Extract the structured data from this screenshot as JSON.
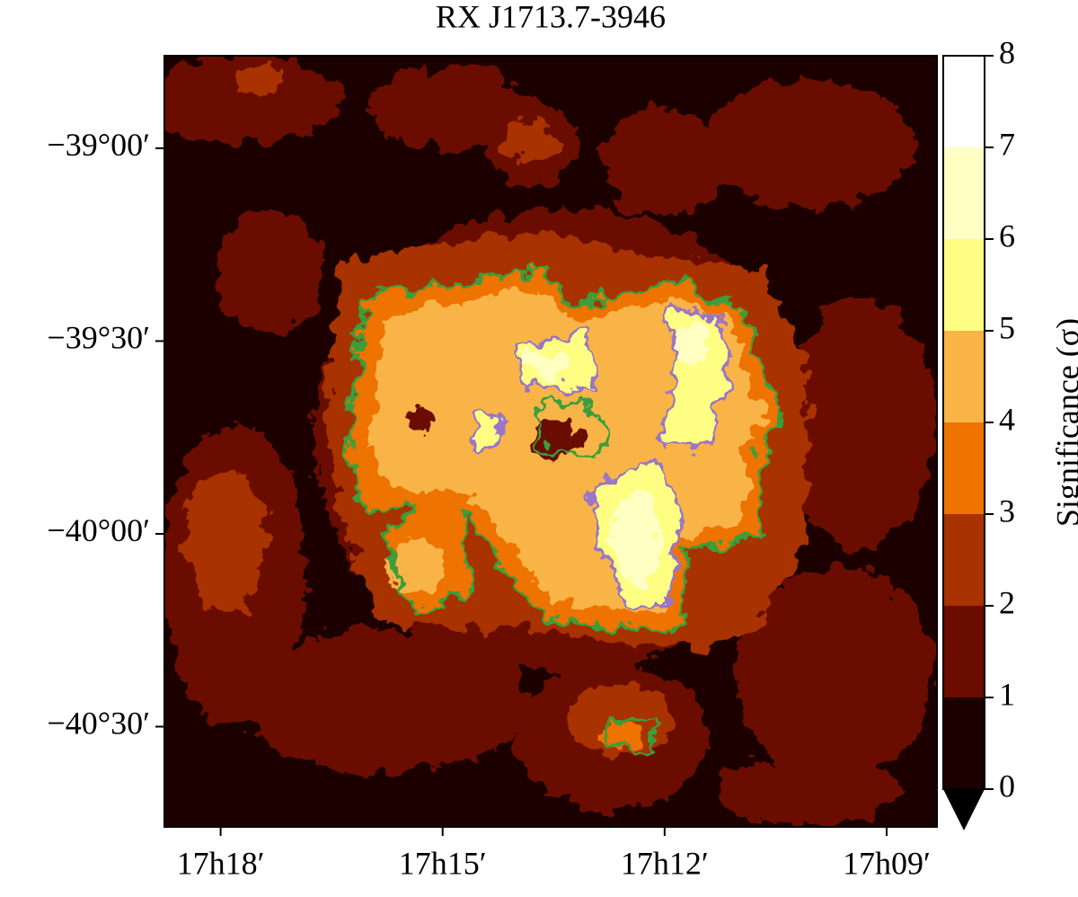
{
  "chart_data": {
    "type": "heatmap",
    "title": "RX J1713.7-3946",
    "xlim": [
      259.69,
      257.08
    ],
    "ylim": [
      -40.76,
      -38.76
    ],
    "xticks": [
      {
        "value": 259.5,
        "label": "17h18′"
      },
      {
        "value": 258.75,
        "label": "17h15′"
      },
      {
        "value": 258.0,
        "label": "17h12′"
      },
      {
        "value": 257.25,
        "label": "17h09′"
      }
    ],
    "yticks": [
      {
        "value": -39.0,
        "label": "−39°00′"
      },
      {
        "value": -39.5,
        "label": "−39°30′"
      },
      {
        "value": -40.0,
        "label": "−40°00′"
      },
      {
        "value": -40.5,
        "label": "−40°30′"
      }
    ],
    "colorbar_label": "Significance (σ)",
    "colorbar_ticks": [
      0,
      1,
      2,
      3,
      4,
      5,
      6,
      7,
      8
    ],
    "colors": [
      "#1c0000",
      "#6b0c00",
      "#a83200",
      "#ee7300",
      "#f9b446",
      "#fefe82",
      "#ffffc4",
      "#ffffff"
    ],
    "extend_color": "#000000",
    "contour_colors": [
      "#3a9e3a",
      "#9a74c8"
    ]
  }
}
